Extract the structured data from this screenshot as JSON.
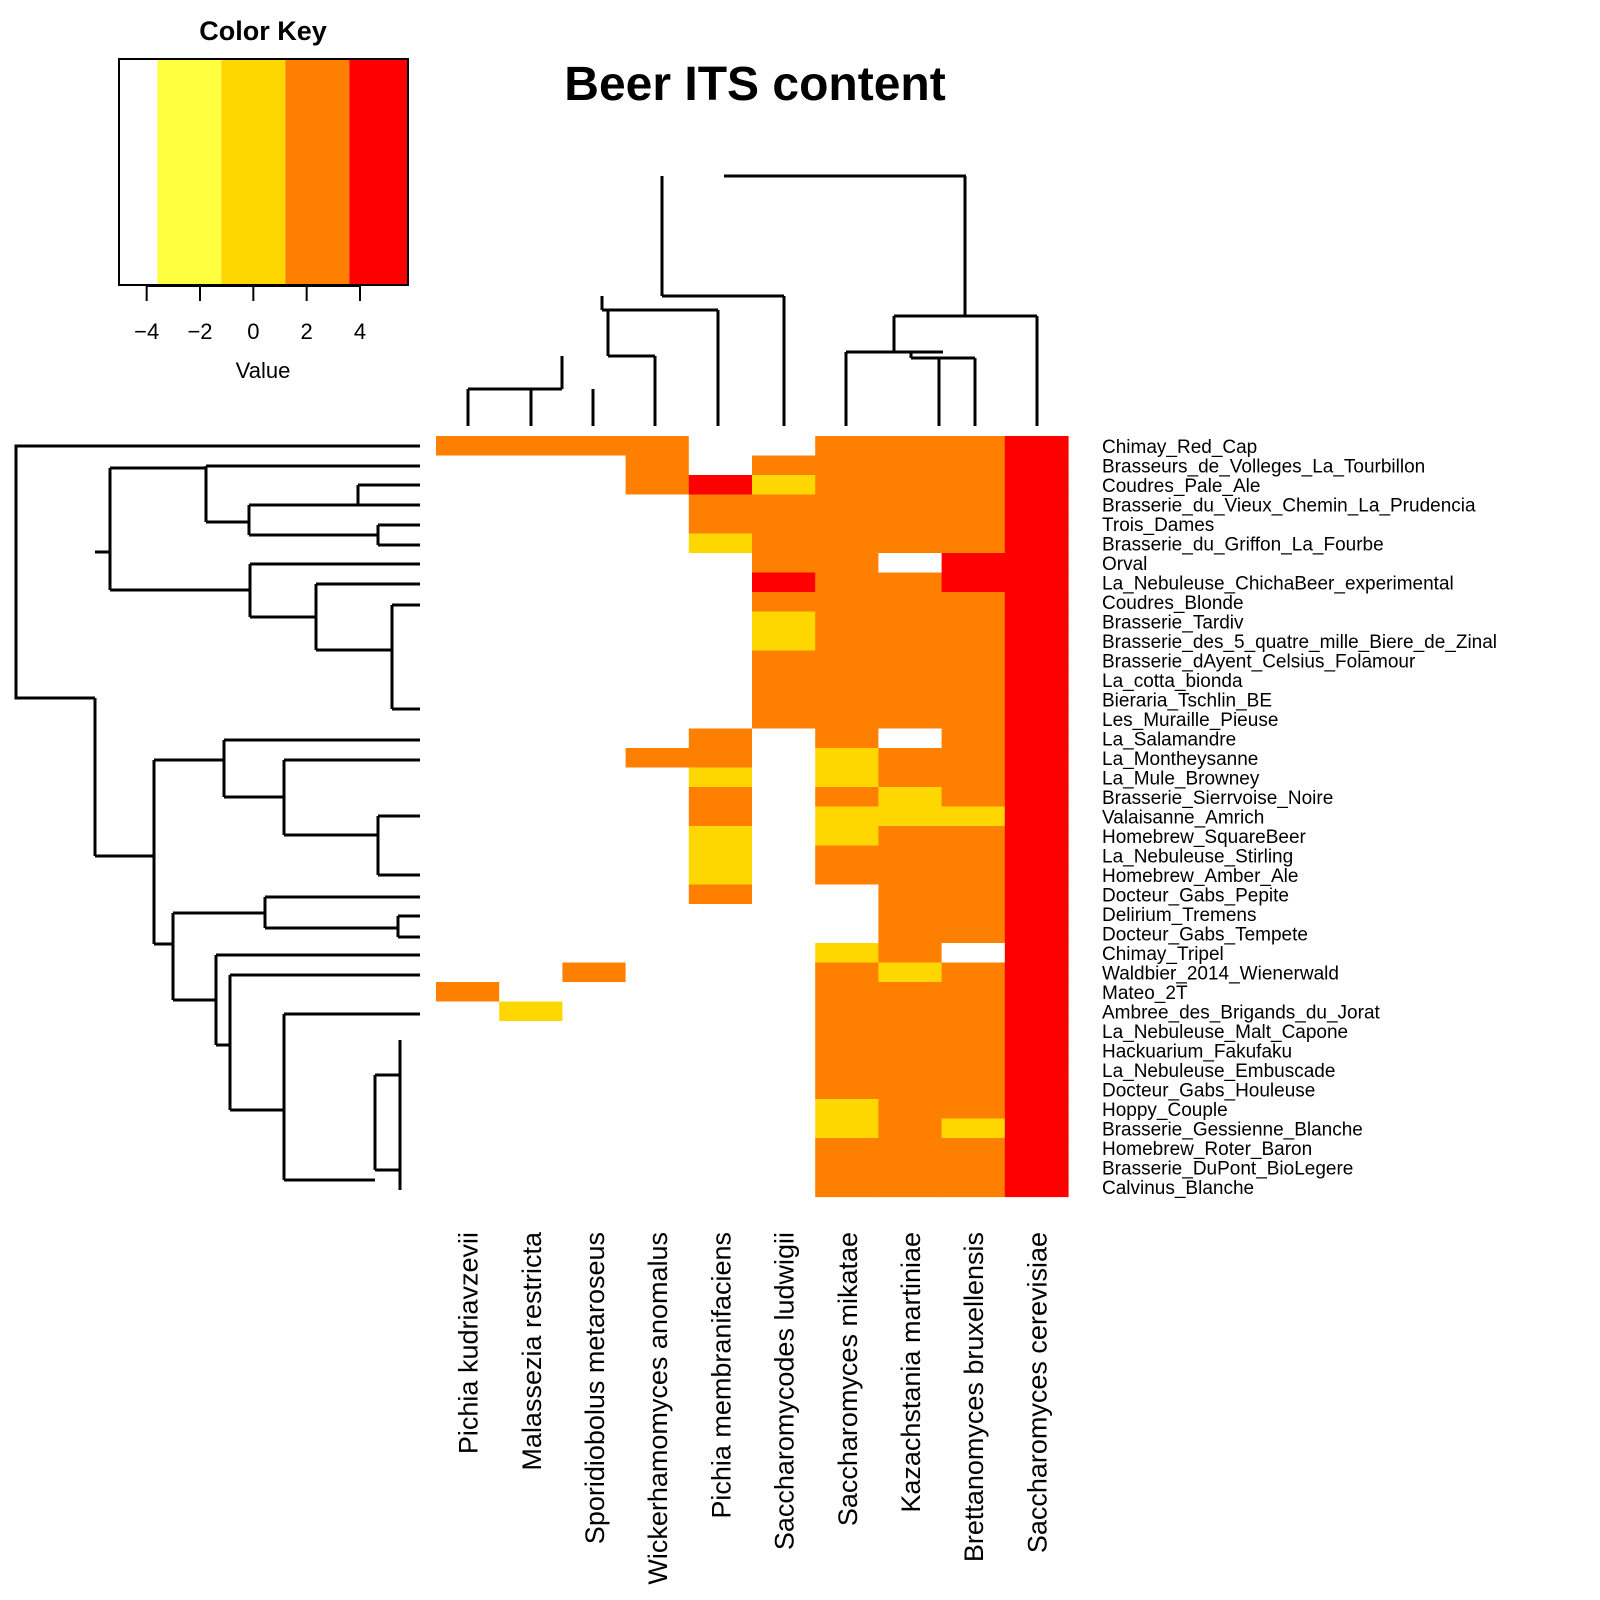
{
  "chart_data": {
    "type": "heatmap",
    "title": "Beer ITS content",
    "color_key": {
      "title": "Color Key",
      "xlabel": "Value",
      "ticks": [
        "−4",
        "−2",
        "0",
        "2",
        "4"
      ],
      "tick_values": [
        -4,
        -2,
        0,
        2,
        4
      ],
      "range": [
        -5,
        5.8
      ],
      "bins": [
        {
          "from": -5.0,
          "to": -3.6,
          "color": "#ffffff"
        },
        {
          "from": -3.6,
          "to": -1.2,
          "color": "#ffff40"
        },
        {
          "from": -1.2,
          "to": 1.2,
          "color": "#ffd700"
        },
        {
          "from": 1.2,
          "to": 3.6,
          "color": "#ff8000"
        },
        {
          "from": 3.6,
          "to": 5.8,
          "color": "#ff0000"
        }
      ]
    },
    "columns": [
      "Pichia kudriavzevii",
      "Malassezia restricta",
      "Sporidiobolus metaroseus",
      "Wickerhamomyces anomalus",
      "Pichia membranifaciens",
      "Saccharomycodes ludwigii",
      "Saccharomyces mikatae",
      "Kazachstania martiniae",
      "Brettanomyces bruxellensis",
      "Saccharomyces cerevisiae"
    ],
    "rows": [
      "Chimay_Red_Cap",
      "Brasseurs_de_Volleges_La_Tourbillon",
      "Coudres_Pale_Ale",
      "Brasserie_du_Vieux_Chemin_La_Prudencia",
      "Trois_Dames",
      "Brasserie_du_Griffon_La_Fourbe",
      "Orval",
      "La_Nebuleuse_ChichaBeer_experimental",
      "Coudres_Blonde",
      "Brasserie_Tardiv",
      "Brasserie_des_5_quatre_mille_Biere_de_Zinal",
      "Brasserie_dAyent_Celsius_Folamour",
      "La_cotta_bionda",
      "Bieraria_Tschlin_BE",
      "Les_Muraille_Pieuse",
      "La_Salamandre",
      "La_Montheysanne",
      "La_Mule_Browney",
      "Brasserie_Sierrvoise_Noire",
      "Valaisanne_Amrich",
      "Homebrew_SquareBeer",
      "La_Nebuleuse_Stirling",
      "Homebrew_Amber_Ale",
      "Docteur_Gabs_Pepite",
      "Delirium_Tremens",
      "Docteur_Gabs_Tempete",
      "Chimay_Tripel",
      "Waldbier_2014_Wienerwald",
      "Mateo_2T",
      "Ambree_des_Brigands_du_Jorat",
      "La_Nebuleuse_Malt_Capone",
      "Hackuarium_Fakufaku",
      "La_Nebuleuse_Embuscade",
      "Docteur_Gabs_Houleuse",
      "Hoppy_Couple",
      "Brasserie_Gessienne_Blanche",
      "Homebrew_Roter_Baron",
      "Brasserie_DuPont_BioLegere",
      "Calvinus_Blanche"
    ],
    "values": [
      [
        2,
        2,
        2,
        2,
        -4,
        -4,
        2,
        2,
        2,
        4.5
      ],
      [
        -4,
        -4,
        -4,
        2,
        -4,
        2,
        2,
        2,
        2,
        4.5
      ],
      [
        -4,
        -4,
        -4,
        2,
        4.5,
        0,
        2,
        2,
        2,
        4.5
      ],
      [
        -4,
        -4,
        -4,
        -4,
        2,
        2,
        2,
        2,
        2,
        4.5
      ],
      [
        -4,
        -4,
        -4,
        -4,
        2,
        2,
        2,
        2,
        2,
        4.5
      ],
      [
        -4,
        -4,
        -4,
        -4,
        0,
        2,
        2,
        2,
        2,
        4.5
      ],
      [
        -4,
        -4,
        -4,
        -4,
        -4,
        2,
        2,
        -4,
        4.5,
        4.5
      ],
      [
        -4,
        -4,
        -4,
        -4,
        -4,
        4.5,
        2,
        2,
        4.5,
        4.5
      ],
      [
        -4,
        -4,
        -4,
        -4,
        -4,
        2,
        2,
        2,
        2,
        4.5
      ],
      [
        -4,
        -4,
        -4,
        -4,
        -4,
        0,
        2,
        2,
        2,
        4.5
      ],
      [
        -4,
        -4,
        -4,
        -4,
        -4,
        0,
        2,
        2,
        2,
        4.5
      ],
      [
        -4,
        -4,
        -4,
        -4,
        -4,
        2,
        2,
        2,
        2,
        4.5
      ],
      [
        -4,
        -4,
        -4,
        -4,
        -4,
        2,
        2,
        2,
        2,
        4.5
      ],
      [
        -4,
        -4,
        -4,
        -4,
        -4,
        2,
        2,
        2,
        2,
        4.5
      ],
      [
        -4,
        -4,
        -4,
        -4,
        -4,
        2,
        2,
        2,
        2,
        4.5
      ],
      [
        -4,
        -4,
        -4,
        -4,
        2,
        -4,
        2,
        -4,
        2,
        4.5
      ],
      [
        -4,
        -4,
        -4,
        2,
        2,
        -4,
        0,
        2,
        2,
        4.5
      ],
      [
        -4,
        -4,
        -4,
        -4,
        0,
        -4,
        0,
        2,
        2,
        4.5
      ],
      [
        -4,
        -4,
        -4,
        -4,
        2,
        -4,
        2,
        0,
        2,
        4.5
      ],
      [
        -4,
        -4,
        -4,
        -4,
        2,
        -4,
        0,
        0,
        0,
        4.5
      ],
      [
        -4,
        -4,
        -4,
        -4,
        0,
        -4,
        0,
        2,
        2,
        4.5
      ],
      [
        -4,
        -4,
        -4,
        -4,
        0,
        -4,
        2,
        2,
        2,
        4.5
      ],
      [
        -4,
        -4,
        -4,
        -4,
        0,
        -4,
        2,
        2,
        2,
        4.5
      ],
      [
        -4,
        -4,
        -4,
        -4,
        2,
        -4,
        -4,
        2,
        2,
        4.5
      ],
      [
        -4,
        -4,
        -4,
        -4,
        -4,
        -4,
        -4,
        2,
        2,
        4.5
      ],
      [
        -4,
        -4,
        -4,
        -4,
        -4,
        -4,
        -4,
        2,
        2,
        4.5
      ],
      [
        -4,
        -4,
        -4,
        -4,
        -4,
        -4,
        0,
        2,
        -4,
        4.5
      ],
      [
        -4,
        -4,
        2,
        -4,
        -4,
        -4,
        2,
        0,
        2,
        4.5
      ],
      [
        2,
        -4,
        -4,
        -4,
        -4,
        -4,
        2,
        2,
        2,
        4.5
      ],
      [
        -4,
        0,
        -4,
        -4,
        -4,
        -4,
        2,
        2,
        2,
        4.5
      ],
      [
        -4,
        -4,
        -4,
        -4,
        -4,
        -4,
        2,
        2,
        2,
        4.5
      ],
      [
        -4,
        -4,
        -4,
        -4,
        -4,
        -4,
        2,
        2,
        2,
        4.5
      ],
      [
        -4,
        -4,
        -4,
        -4,
        -4,
        -4,
        2,
        2,
        2,
        4.5
      ],
      [
        -4,
        -4,
        -4,
        -4,
        -4,
        -4,
        2,
        2,
        2,
        4.5
      ],
      [
        -4,
        -4,
        -4,
        -4,
        -4,
        -4,
        0,
        2,
        2,
        4.5
      ],
      [
        -4,
        -4,
        -4,
        -4,
        -4,
        -4,
        0,
        2,
        0,
        4.5
      ],
      [
        -4,
        -4,
        -4,
        -4,
        -4,
        -4,
        2,
        2,
        2,
        4.5
      ],
      [
        -4,
        -4,
        -4,
        -4,
        -4,
        -4,
        2,
        2,
        2,
        4.5
      ],
      [
        -4,
        -4,
        -4,
        -4,
        -4,
        -4,
        2,
        2,
        2,
        4.5
      ]
    ],
    "grid": false,
    "legend": "top-left",
    "dendrograms": {
      "rows": true,
      "columns": true
    }
  }
}
